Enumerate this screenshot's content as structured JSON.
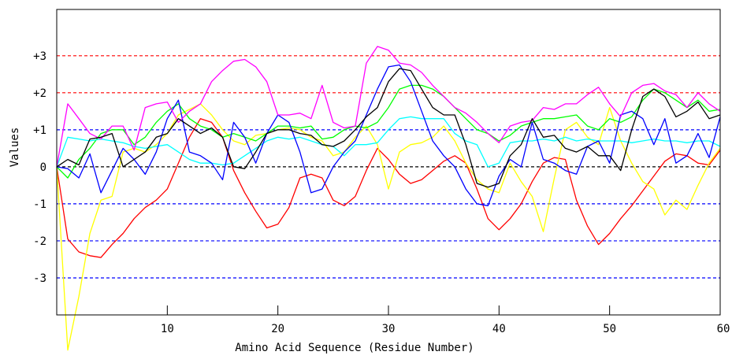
{
  "chart_data": {
    "type": "line",
    "title": "",
    "xlabel": "Amino Acid Sequence (Residue Number)",
    "ylabel": "Values",
    "xlim": [
      0,
      60
    ],
    "ylim": [
      -4.0,
      4.25
    ],
    "x_ticks": [
      10,
      20,
      30,
      40,
      50,
      60
    ],
    "x_tick_labels": [
      "10",
      "20",
      "30",
      "40",
      "50",
      "60"
    ],
    "y_ticks": [
      3,
      2,
      1,
      0,
      -1,
      -2,
      -3
    ],
    "y_tick_labels": [
      "+3",
      "+2",
      "+1",
      "0",
      "-1",
      "-2",
      "-3"
    ],
    "reference_lines": [
      {
        "y": 3,
        "color": "#ff0000"
      },
      {
        "y": 2,
        "color": "#ff0000"
      },
      {
        "y": 1,
        "color": "#0000ff"
      },
      {
        "y": 0,
        "color": "#000000"
      },
      {
        "y": -1,
        "color": "#0000ff"
      },
      {
        "y": -2,
        "color": "#0000ff"
      },
      {
        "y": -3,
        "color": "#0000ff"
      }
    ],
    "legend": "none",
    "series": [
      {
        "color": "#ff0000",
        "x": [
          0,
          1,
          2,
          3,
          4,
          5,
          6,
          7,
          8,
          9,
          10,
          11,
          12,
          13,
          14,
          15,
          16,
          17,
          18,
          19,
          20,
          21,
          22,
          23,
          24,
          25,
          26,
          27,
          28,
          29,
          30,
          31,
          32,
          33,
          34,
          35,
          36,
          37,
          38,
          39,
          40,
          41,
          42,
          43,
          44,
          45,
          46,
          47,
          48,
          49,
          50,
          51,
          52,
          53,
          54,
          55,
          56,
          57,
          58,
          59,
          60
        ],
        "values": [
          0,
          -1.95,
          -2.3,
          -2.4,
          -2.45,
          -2.1,
          -1.8,
          -1.4,
          -1.1,
          -0.9,
          -0.6,
          0.1,
          0.8,
          1.3,
          1.2,
          0.8,
          -0.1,
          -0.7,
          -1.2,
          -1.65,
          -1.55,
          -1.1,
          -0.3,
          -0.2,
          -0.3,
          -0.9,
          -1.05,
          -0.8,
          -0.1,
          0.5,
          0.2,
          -0.2,
          -0.45,
          -0.35,
          -0.1,
          0.15,
          0.3,
          0.1,
          -0.6,
          -1.4,
          -1.7,
          -1.4,
          -1.0,
          -0.4,
          0.1,
          0.25,
          0.2,
          -0.9,
          -1.6,
          -2.1,
          -1.8,
          -1.4,
          -1.05,
          -0.65,
          -0.25,
          0.15,
          0.35,
          0.3,
          0.1,
          0.05,
          0.45
        ]
      },
      {
        "color": "#ffff00",
        "x": [
          0,
          1,
          2,
          3,
          4,
          5,
          6,
          7,
          8,
          9,
          10,
          11,
          12,
          13,
          14,
          15,
          16,
          17,
          18,
          19,
          20,
          21,
          22,
          23,
          24,
          25,
          26,
          27,
          28,
          29,
          30,
          31,
          32,
          33,
          34,
          35,
          36,
          37,
          38,
          39,
          40,
          41,
          42,
          43,
          44,
          45,
          46,
          47,
          48,
          49,
          50,
          51,
          52,
          53,
          54,
          55,
          56,
          57,
          58,
          59,
          60
        ],
        "values": [
          0,
          -4.95,
          -3.5,
          -1.8,
          -0.9,
          -0.8,
          0.4,
          0.5,
          0.4,
          0.6,
          0.9,
          1.4,
          1.55,
          1.7,
          1.4,
          1.0,
          0.7,
          0.6,
          0.85,
          0.9,
          1.0,
          1.05,
          1.0,
          0.8,
          0.7,
          0.3,
          0.4,
          0.8,
          1.1,
          0.6,
          -0.6,
          0.4,
          0.6,
          0.65,
          0.8,
          1.1,
          0.7,
          0.1,
          -0.35,
          -0.6,
          -0.7,
          0.1,
          -0.4,
          -0.8,
          -1.75,
          -0.3,
          1.0,
          1.2,
          0.8,
          0.6,
          1.6,
          0.7,
          0.1,
          -0.4,
          -0.6,
          -1.3,
          -0.9,
          -1.15,
          -0.5,
          0.1,
          0.5
        ]
      },
      {
        "color": "#00ff00",
        "x": [
          0,
          1,
          2,
          3,
          4,
          5,
          6,
          7,
          8,
          9,
          10,
          11,
          12,
          13,
          14,
          15,
          16,
          17,
          18,
          19,
          20,
          21,
          22,
          23,
          24,
          25,
          26,
          27,
          28,
          29,
          30,
          31,
          32,
          33,
          34,
          35,
          36,
          37,
          38,
          39,
          40,
          41,
          42,
          43,
          44,
          45,
          46,
          47,
          48,
          49,
          50,
          51,
          52,
          53,
          54,
          55,
          56,
          57,
          58,
          59,
          60
        ],
        "values": [
          0,
          -0.3,
          0.2,
          0.5,
          0.9,
          1.0,
          1.0,
          0.6,
          0.8,
          1.2,
          1.5,
          1.7,
          1.3,
          1.1,
          1.0,
          0.8,
          0.9,
          0.8,
          0.7,
          0.9,
          1.1,
          1.1,
          1.05,
          1.1,
          0.75,
          0.8,
          1.0,
          1.1,
          1.05,
          1.2,
          1.6,
          2.1,
          2.2,
          2.2,
          2.1,
          1.9,
          1.6,
          1.3,
          1.0,
          0.9,
          0.7,
          0.85,
          1.1,
          1.2,
          1.3,
          1.3,
          1.35,
          1.4,
          1.1,
          1.0,
          1.3,
          1.2,
          1.35,
          1.8,
          2.1,
          2.0,
          1.8,
          1.6,
          1.8,
          1.5,
          1.55
        ]
      },
      {
        "color": "#00ffff",
        "x": [
          0,
          1,
          2,
          3,
          4,
          5,
          6,
          7,
          8,
          9,
          10,
          11,
          12,
          13,
          14,
          15,
          16,
          17,
          18,
          19,
          20,
          21,
          22,
          23,
          24,
          25,
          26,
          27,
          28,
          29,
          30,
          31,
          32,
          33,
          34,
          35,
          36,
          37,
          38,
          39,
          40,
          41,
          42,
          43,
          44,
          45,
          46,
          47,
          48,
          49,
          50,
          51,
          52,
          53,
          54,
          55,
          56,
          57,
          58,
          59,
          60
        ],
        "values": [
          0,
          0.8,
          0.75,
          0.7,
          0.75,
          0.7,
          0.65,
          0.55,
          0.5,
          0.55,
          0.6,
          0.4,
          0.2,
          0.1,
          0.1,
          0.05,
          0.1,
          0.3,
          0.5,
          0.7,
          0.8,
          0.75,
          0.8,
          0.7,
          0.6,
          0.55,
          0.3,
          0.6,
          0.6,
          0.65,
          1.0,
          1.3,
          1.35,
          1.3,
          1.3,
          1.3,
          0.9,
          0.7,
          0.6,
          0.0,
          0.1,
          0.65,
          0.7,
          0.7,
          0.75,
          0.7,
          0.8,
          0.7,
          0.75,
          0.7,
          0.7,
          0.7,
          0.65,
          0.7,
          0.75,
          0.7,
          0.7,
          0.65,
          0.7,
          0.7,
          0.55
        ]
      },
      {
        "color": "#0000ff",
        "x": [
          0,
          1,
          2,
          3,
          4,
          5,
          6,
          7,
          8,
          9,
          10,
          11,
          12,
          13,
          14,
          15,
          16,
          17,
          18,
          19,
          20,
          21,
          22,
          23,
          24,
          25,
          26,
          27,
          28,
          29,
          30,
          31,
          32,
          33,
          34,
          35,
          36,
          37,
          38,
          39,
          40,
          41,
          42,
          43,
          44,
          45,
          46,
          47,
          48,
          49,
          50,
          51,
          52,
          53,
          54,
          55,
          56,
          57,
          58,
          59,
          60
        ],
        "values": [
          0,
          -0.05,
          -0.3,
          0.35,
          -0.7,
          -0.1,
          0.5,
          0.2,
          -0.2,
          0.4,
          1.3,
          1.8,
          0.4,
          0.3,
          0.1,
          -0.35,
          1.2,
          0.8,
          0.1,
          0.9,
          1.4,
          1.2,
          0.4,
          -0.7,
          -0.6,
          0.0,
          0.4,
          0.7,
          1.4,
          2.1,
          2.7,
          2.75,
          2.3,
          1.5,
          0.7,
          0.3,
          0.0,
          -0.6,
          -1.0,
          -1.05,
          -0.25,
          0.2,
          0.0,
          1.2,
          0.2,
          0.1,
          -0.1,
          -0.2,
          0.55,
          0.7,
          0.1,
          1.4,
          1.5,
          1.3,
          0.6,
          1.3,
          0.1,
          0.3,
          0.9,
          0.25,
          1.35
        ]
      },
      {
        "color": "#ff00ff",
        "x": [
          0,
          1,
          2,
          3,
          4,
          5,
          6,
          7,
          8,
          9,
          10,
          11,
          12,
          13,
          14,
          15,
          16,
          17,
          18,
          19,
          20,
          21,
          22,
          23,
          24,
          25,
          26,
          27,
          28,
          29,
          30,
          31,
          32,
          33,
          34,
          35,
          36,
          37,
          38,
          39,
          40,
          41,
          42,
          43,
          44,
          45,
          46,
          47,
          48,
          49,
          50,
          51,
          52,
          53,
          54,
          55,
          56,
          57,
          58,
          59,
          60
        ],
        "values": [
          0,
          1.7,
          1.3,
          0.9,
          0.75,
          1.1,
          1.1,
          0.45,
          1.6,
          1.7,
          1.75,
          1.2,
          1.5,
          1.7,
          2.3,
          2.6,
          2.85,
          2.9,
          2.7,
          2.3,
          1.4,
          1.4,
          1.45,
          1.3,
          2.2,
          1.2,
          1.05,
          1.1,
          2.8,
          3.25,
          3.15,
          2.8,
          2.75,
          2.55,
          2.2,
          1.9,
          1.6,
          1.45,
          1.2,
          0.9,
          0.65,
          1.1,
          1.2,
          1.25,
          1.6,
          1.55,
          1.7,
          1.7,
          1.95,
          2.15,
          1.7,
          1.35,
          2.0,
          2.2,
          2.25,
          2.05,
          1.95,
          1.6,
          2.0,
          1.7,
          1.5
        ]
      },
      {
        "color": "#000000",
        "x": [
          0,
          1,
          2,
          3,
          4,
          5,
          6,
          7,
          8,
          9,
          10,
          11,
          12,
          13,
          14,
          15,
          16,
          17,
          18,
          19,
          20,
          21,
          22,
          23,
          24,
          25,
          26,
          27,
          28,
          29,
          30,
          31,
          32,
          33,
          34,
          35,
          36,
          37,
          38,
          39,
          40,
          41,
          42,
          43,
          44,
          45,
          46,
          47,
          48,
          49,
          50,
          51,
          52,
          53,
          54,
          55,
          56,
          57,
          58,
          59,
          60
        ],
        "values": [
          0,
          0.2,
          0.05,
          0.75,
          0.8,
          0.9,
          0.0,
          0.2,
          0.4,
          0.8,
          0.9,
          1.3,
          1.1,
          0.9,
          1.05,
          0.8,
          0.0,
          -0.05,
          0.4,
          0.9,
          1.0,
          1.0,
          0.9,
          0.85,
          0.6,
          0.55,
          0.7,
          1.0,
          1.35,
          1.6,
          2.3,
          2.65,
          2.6,
          2.1,
          1.6,
          1.4,
          1.4,
          0.6,
          -0.45,
          -0.55,
          -0.45,
          0.3,
          0.6,
          1.3,
          0.8,
          0.85,
          0.5,
          0.4,
          0.55,
          0.3,
          0.3,
          -0.1,
          1.0,
          1.9,
          2.1,
          1.9,
          1.35,
          1.5,
          1.75,
          1.3,
          1.4
        ]
      }
    ]
  }
}
